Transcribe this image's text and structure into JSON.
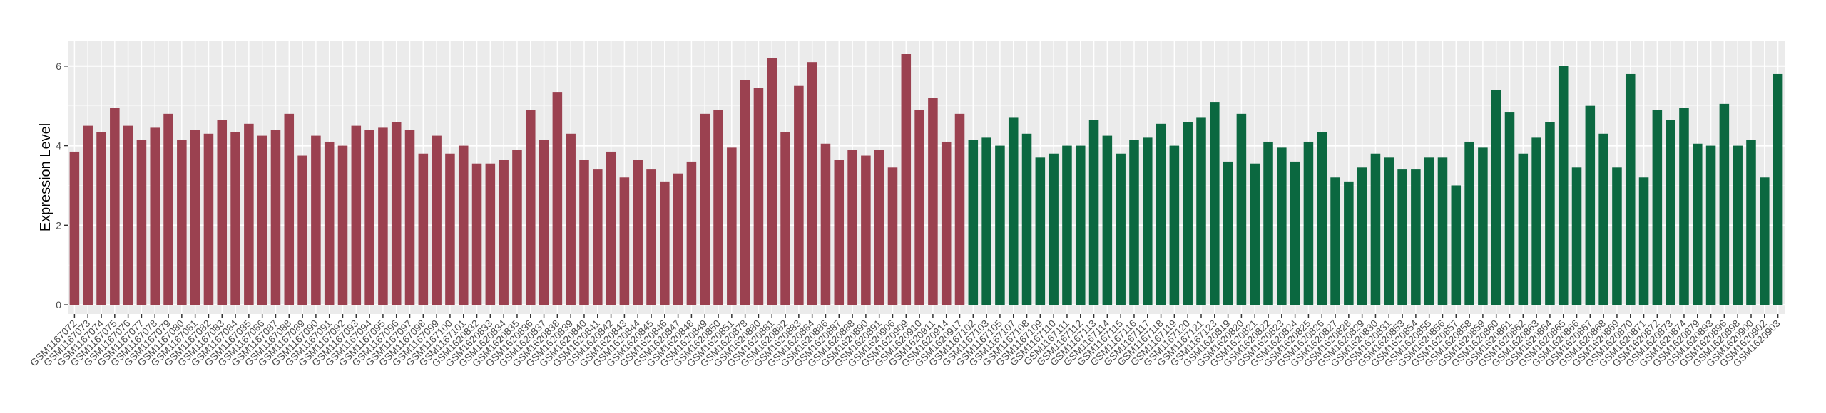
{
  "chart_data": {
    "type": "bar",
    "ylabel": "Expression Level",
    "categories": [
      "GSM1167072",
      "GSM1167073",
      "GSM1167074",
      "GSM1167075",
      "GSM1167076",
      "GSM1167077",
      "GSM1167078",
      "GSM1167079",
      "GSM1167080",
      "GSM1167081",
      "GSM1167082",
      "GSM1167083",
      "GSM1167084",
      "GSM1167085",
      "GSM1167086",
      "GSM1167087",
      "GSM1167088",
      "GSM1167089",
      "GSM1167090",
      "GSM1167091",
      "GSM1167092",
      "GSM1167093",
      "GSM1167094",
      "GSM1167095",
      "GSM1167096",
      "GSM1167097",
      "GSM1167098",
      "GSM1167099",
      "GSM1167100",
      "GSM1167101",
      "GSM1620832",
      "GSM1620833",
      "GSM1620834",
      "GSM1620835",
      "GSM1620836",
      "GSM1620837",
      "GSM1620838",
      "GSM1620839",
      "GSM1620840",
      "GSM1620841",
      "GSM1620842",
      "GSM1620843",
      "GSM1620844",
      "GSM1620845",
      "GSM1620846",
      "GSM1620847",
      "GSM1620848",
      "GSM1620849",
      "GSM1620850",
      "GSM1620851",
      "GSM1620878",
      "GSM1620880",
      "GSM1620881",
      "GSM1620882",
      "GSM1620883",
      "GSM1620884",
      "GSM1620886",
      "GSM1620887",
      "GSM1620888",
      "GSM1620890",
      "GSM1620891",
      "GSM1620906",
      "GSM1620909",
      "GSM1620910",
      "GSM1620911",
      "GSM1620914",
      "GSM1620917",
      "GSM1167102",
      "GSM1167103",
      "GSM1167105",
      "GSM1167107",
      "GSM1167108",
      "GSM1167109",
      "GSM1167110",
      "GSM1167111",
      "GSM1167112",
      "GSM1167113",
      "GSM1167114",
      "GSM1167115",
      "GSM1167116",
      "GSM1167117",
      "GSM1167118",
      "GSM1167119",
      "GSM1167120",
      "GSM1167121",
      "GSM1167123",
      "GSM1620819",
      "GSM1620820",
      "GSM1620821",
      "GSM1620822",
      "GSM1620823",
      "GSM1620824",
      "GSM1620825",
      "GSM1620826",
      "GSM1620827",
      "GSM1620828",
      "GSM1620829",
      "GSM1620830",
      "GSM1620831",
      "GSM1620853",
      "GSM1620854",
      "GSM1620855",
      "GSM1620856",
      "GSM1620857",
      "GSM1620858",
      "GSM1620859",
      "GSM1620860",
      "GSM1620861",
      "GSM1620862",
      "GSM1620863",
      "GSM1620864",
      "GSM1620865",
      "GSM1620866",
      "GSM1620867",
      "GSM1620868",
      "GSM1620869",
      "GSM1620870",
      "GSM1620871",
      "GSM1620872",
      "GSM1620873",
      "GSM1620874",
      "GSM1620879",
      "GSM1620893",
      "GSM1620896",
      "GSM1620898",
      "GSM1620900",
      "GSM1620902",
      "GSM1620903"
    ],
    "series": [
      {
        "color": "#9b4150",
        "values": [
          3.85,
          4.5,
          4.35,
          4.95,
          4.5,
          4.15,
          4.45,
          4.8,
          4.15,
          4.4,
          4.3,
          4.65,
          4.35,
          4.55,
          4.25,
          4.4,
          4.8,
          3.75,
          4.25,
          4.1,
          4.0,
          4.5,
          4.4,
          4.45,
          4.6,
          4.4,
          3.8,
          4.25,
          3.8,
          4.0,
          3.55,
          3.55,
          3.65,
          3.9,
          4.9,
          4.15,
          5.35,
          4.3,
          3.65,
          3.4,
          3.85,
          3.2,
          3.65,
          3.4,
          3.1,
          3.3,
          3.6,
          4.8,
          4.9,
          3.95,
          5.65,
          5.45,
          6.2,
          4.35,
          5.5,
          6.1,
          4.05,
          3.65,
          3.9,
          3.75,
          3.9,
          3.45,
          6.3,
          4.9,
          5.2,
          4.1,
          4.8,
          null,
          null,
          null,
          null,
          null,
          null,
          null,
          null,
          null,
          null,
          null,
          null,
          null,
          null,
          null,
          null,
          null,
          null,
          null,
          null,
          null,
          null,
          null,
          null,
          null,
          null,
          null,
          null,
          null,
          null,
          null,
          null,
          null,
          null,
          null,
          null,
          null,
          null,
          null,
          null,
          null,
          null,
          null,
          null,
          null,
          null,
          null,
          null,
          null,
          null,
          null,
          null,
          null,
          null,
          null,
          null,
          null,
          null,
          null,
          null,
          null
        ]
      },
      {
        "color": "#0b6840",
        "values": [
          null,
          null,
          null,
          null,
          null,
          null,
          null,
          null,
          null,
          null,
          null,
          null,
          null,
          null,
          null,
          null,
          null,
          null,
          null,
          null,
          null,
          null,
          null,
          null,
          null,
          null,
          null,
          null,
          null,
          null,
          null,
          null,
          null,
          null,
          null,
          null,
          null,
          null,
          null,
          null,
          null,
          null,
          null,
          null,
          null,
          null,
          null,
          null,
          null,
          null,
          null,
          null,
          null,
          null,
          null,
          null,
          null,
          null,
          null,
          null,
          null,
          null,
          null,
          null,
          null,
          null,
          null,
          4.15,
          4.2,
          4.0,
          4.7,
          4.3,
          3.7,
          3.8,
          4.0,
          4.0,
          4.65,
          4.25,
          3.8,
          4.15,
          4.2,
          4.55,
          4.0,
          4.6,
          4.7,
          5.1,
          3.6,
          4.8,
          3.55,
          4.1,
          3.95,
          3.6,
          4.1,
          4.35,
          3.2,
          3.1,
          3.45,
          3.8,
          3.7,
          3.4,
          3.4,
          3.7,
          3.7,
          3.0,
          4.1,
          3.95,
          5.4,
          4.85,
          3.8,
          4.2,
          4.6,
          6.0,
          3.45,
          5.0,
          4.3,
          3.45,
          5.8,
          3.2,
          4.9,
          4.65,
          4.95,
          4.05,
          4.0,
          5.05,
          4.0,
          4.15,
          3.2,
          5.8
        ]
      }
    ],
    "ylim": [
      -0.23,
      6.64
    ],
    "yticks": [
      0,
      2,
      4,
      6
    ],
    "grid": true
  }
}
